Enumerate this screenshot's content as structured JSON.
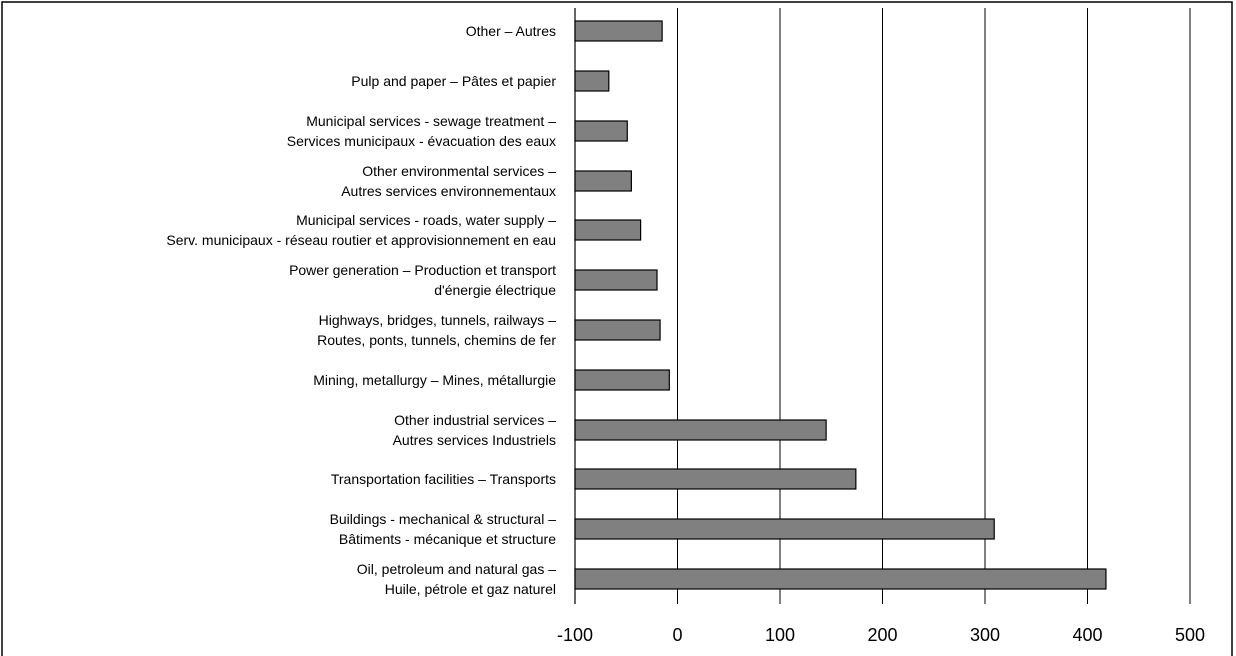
{
  "colors": {
    "bar_fill": "#808080",
    "bar_stroke": "#000000",
    "grid": "#000000",
    "background": "#ffffff"
  },
  "chart_data": {
    "type": "bar",
    "orientation": "horizontal",
    "title": "",
    "xlabel": "",
    "ylabel": "",
    "xlim": [
      -100,
      500
    ],
    "x_ticks": [
      -100,
      0,
      100,
      200,
      300,
      400,
      500
    ],
    "x_tick_labels": [
      "-100",
      "0",
      "100",
      "200",
      "300",
      "400",
      "500"
    ],
    "grid": "vertical",
    "legend": "none",
    "categories": [
      {
        "label": [
          "Other – Autres"
        ],
        "value": -15
      },
      {
        "label": [
          "Pulp and paper – Pâtes et papier"
        ],
        "value": -67
      },
      {
        "label": [
          "Municipal services - sewage treatment –",
          "Services municipaux - évacuation des eaux"
        ],
        "value": -49
      },
      {
        "label": [
          "Other environmental services –",
          "Autres services environnementaux"
        ],
        "value": -45
      },
      {
        "label": [
          "Municipal services - roads, water supply –",
          "Serv. municipaux - réseau routier et approvisionnement en eau"
        ],
        "value": -36
      },
      {
        "label": [
          "Power generation – Production et transport",
          "d'énergie électrique"
        ],
        "value": -20
      },
      {
        "label": [
          "Highways, bridges, tunnels, railways –",
          "Routes, ponts, tunnels, chemins de fer"
        ],
        "value": -17
      },
      {
        "label": [
          "Mining, metallurgy – Mines, métallurgie"
        ],
        "value": -8
      },
      {
        "label": [
          "Other industrial services –",
          "Autres services Industriels"
        ],
        "value": 145
      },
      {
        "label": [
          "Transportation facilities – Transports"
        ],
        "value": 174
      },
      {
        "label": [
          "Buildings - mechanical & structural –",
          "Bâtiments - mécanique et structure"
        ],
        "value": 309
      },
      {
        "label": [
          "Oil, petroleum and natural gas –",
          "Huile, pétrole et gaz naturel"
        ],
        "value": 418
      }
    ]
  }
}
